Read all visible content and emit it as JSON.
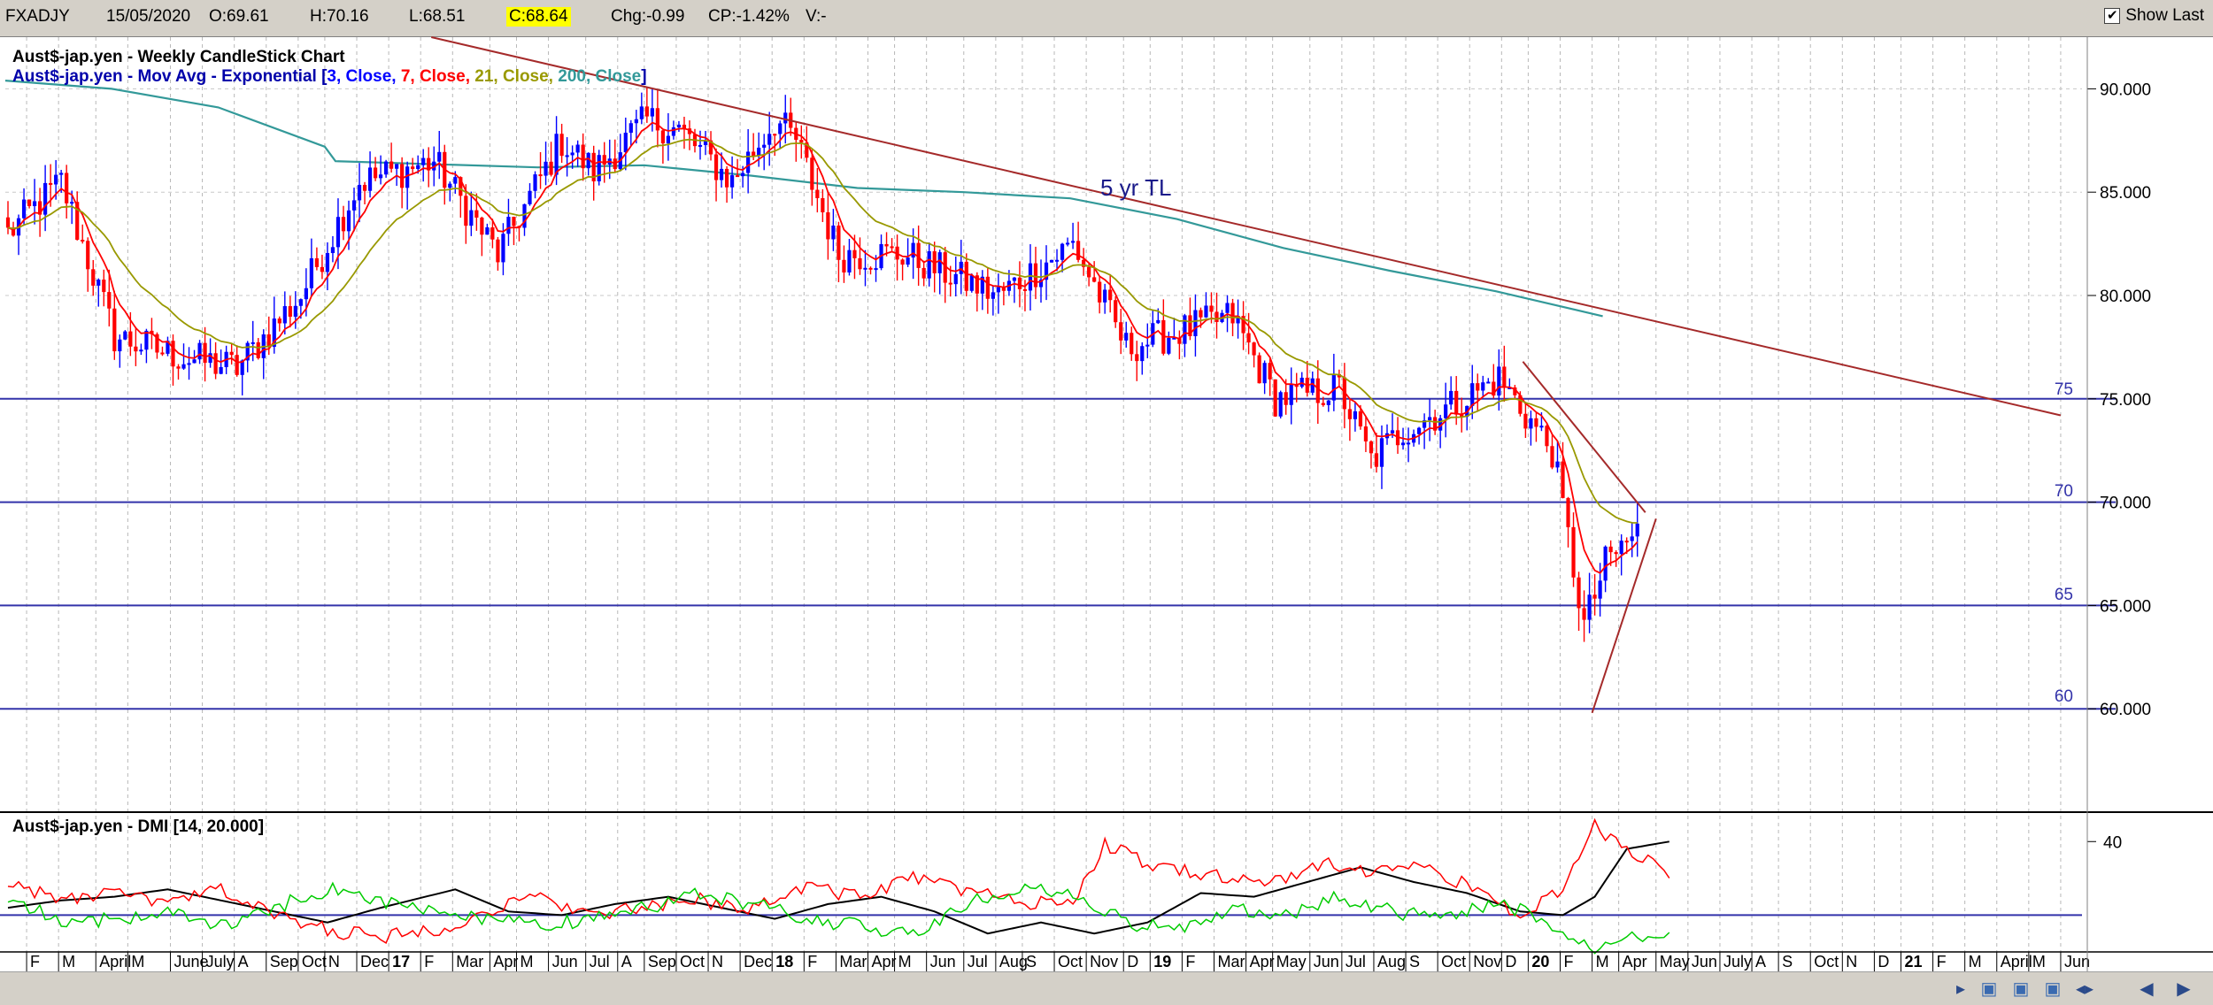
{
  "header": {
    "symbol": "FXADJY",
    "date": "15/05/2020",
    "open": "O:69.61",
    "high": "H:70.16",
    "low": "L:68.51",
    "close": "C:68.64",
    "change": "Chg:-0.99",
    "change_pct": "CP:-1.42%",
    "volume": "V:-",
    "show_last_label": "Show Last",
    "show_last_checked": "✔"
  },
  "price_panel": {
    "title": "Aust$-jap.yen - Weekly CandleStick Chart",
    "ma_prefix": "Aust$-jap.yen - Mov Avg - Exponential [",
    "ma_parts": [
      {
        "text": "3, Close, ",
        "color": "#0000ff"
      },
      {
        "text": "7, Close, ",
        "color": "#ff0000"
      },
      {
        "text": "21, Close, ",
        "color": "#999900"
      },
      {
        "text": "200, Close",
        "color": "#339999"
      }
    ],
    "ma_suffix": "]",
    "annotation": "5 yr TL",
    "level_labels": [
      "75",
      "70",
      "65",
      "60"
    ]
  },
  "dmi_panel": {
    "title": "Aust$-jap.yen - DMI [14, 20.000]"
  },
  "chart_data": [
    {
      "type": "candlestick",
      "title": "Aust$-jap.yen - Weekly CandleStick Chart",
      "ylim": [
        55,
        92.5
      ],
      "yticks": [
        "90.000",
        "85.000",
        "80.000",
        "75.000",
        "70.000",
        "65.000",
        "60.000"
      ],
      "ytick_values": [
        90,
        85,
        80,
        75,
        70,
        65,
        60
      ],
      "grid": true,
      "x_tick_labels": [
        "F",
        "M",
        "April",
        "M",
        "June",
        "July",
        "A",
        "Sep",
        "Oct",
        "N",
        "Dec",
        "17",
        "F",
        "Mar",
        "Apr",
        "M",
        "Jun",
        "Jul",
        "A",
        "Sep",
        "Oct",
        "N",
        "Dec",
        "18",
        "F",
        "Mar",
        "Apr",
        "M",
        "Jun",
        "Jul",
        "Aug",
        "S",
        "Oct",
        "Nov",
        "D",
        "19",
        "F",
        "Mar",
        "Apr",
        "May",
        "Jun",
        "Jul",
        "Aug",
        "S",
        "Oct",
        "Nov",
        "D",
        "20",
        "F",
        "M",
        "Apr",
        "May",
        "Jun",
        "July",
        "A",
        "S",
        "Oct",
        "N",
        "D",
        "21",
        "F",
        "M",
        "April",
        "M",
        "Jun"
      ],
      "x_tick_idx": [
        4,
        10,
        17,
        23,
        31,
        37,
        43,
        49,
        55,
        60,
        66,
        72,
        78,
        84,
        91,
        96,
        102,
        109,
        115,
        120,
        126,
        132,
        138,
        144,
        150,
        156,
        162,
        167,
        173,
        180,
        186,
        191,
        197,
        203,
        210,
        215,
        221,
        227,
        233,
        238,
        245,
        251,
        257,
        263,
        269,
        275,
        281,
        286,
        292,
        298,
        303,
        310,
        316,
        322,
        328,
        333,
        339,
        345,
        351,
        356,
        362,
        368,
        374,
        380,
        386
      ],
      "weeks_total": 390,
      "moving_averages": [
        {
          "name": "3, Close",
          "color": "#0000ff"
        },
        {
          "name": "7, Close",
          "color": "#ff0000"
        },
        {
          "name": "21, Close",
          "color": "#999900"
        },
        {
          "name": "200, Close",
          "color": "#339999"
        }
      ],
      "ema200_points": [
        [
          0,
          90.4
        ],
        [
          20,
          90.0
        ],
        [
          40,
          89.1
        ],
        [
          60,
          87.2
        ],
        [
          62,
          86.5
        ],
        [
          100,
          86.2
        ],
        [
          120,
          86.3
        ],
        [
          140,
          85.8
        ],
        [
          160,
          85.2
        ],
        [
          180,
          85.0
        ],
        [
          200,
          84.7
        ],
        [
          220,
          83.7
        ],
        [
          240,
          82.3
        ],
        [
          260,
          81.2
        ],
        [
          280,
          80.2
        ],
        [
          300,
          79.0
        ]
      ],
      "key_points": [
        [
          0,
          83
        ],
        [
          10,
          85.5
        ],
        [
          20,
          78
        ],
        [
          33,
          77
        ],
        [
          43,
          76.5
        ],
        [
          55,
          80
        ],
        [
          66,
          85.5
        ],
        [
          80,
          86.5
        ],
        [
          92,
          82
        ],
        [
          104,
          87.5
        ],
        [
          110,
          86
        ],
        [
          120,
          88.5
        ],
        [
          126,
          88
        ],
        [
          136,
          85.5
        ],
        [
          144,
          88.5
        ],
        [
          148,
          87.5
        ],
        [
          156,
          82
        ],
        [
          168,
          82
        ],
        [
          186,
          80
        ],
        [
          200,
          82.5
        ],
        [
          210,
          77.5
        ],
        [
          230,
          79
        ],
        [
          238,
          75
        ],
        [
          250,
          75.5
        ],
        [
          256,
          72
        ],
        [
          262,
          73.5
        ],
        [
          270,
          74.5
        ],
        [
          280,
          76
        ],
        [
          290,
          72.5
        ],
        [
          296,
          64
        ],
        [
          300,
          67
        ],
        [
          306,
          68.6
        ]
      ],
      "horizontal_levels": [
        75,
        70,
        65,
        60
      ],
      "trendlines": [
        {
          "from": [
            80,
            92.5
          ],
          "to": [
            386,
            74.2
          ],
          "color": "#a52a2a",
          "label": "5 yr TL"
        },
        {
          "from": [
            285,
            76.8
          ],
          "to": [
            308,
            69.5
          ],
          "color": "#a52a2a"
        },
        {
          "from": [
            298,
            59.8
          ],
          "to": [
            310,
            69.2
          ],
          "color": "#a52a2a"
        }
      ],
      "colors": {
        "up": "#0000ff",
        "down": "#ff0000",
        "level": "#3333aa",
        "trend": "#a52a2a"
      }
    },
    {
      "type": "line",
      "title": "Aust$-jap.yen - DMI [14, 20.000]",
      "ylim": [
        10,
        48
      ],
      "yticks": [
        "40"
      ],
      "ytick_values": [
        40
      ],
      "threshold": 20,
      "series": [
        {
          "color": "#000000",
          "points": [
            [
              0,
              22
            ],
            [
              10,
              24
            ],
            [
              20,
              25
            ],
            [
              30,
              27
            ],
            [
              40,
              24
            ],
            [
              50,
              21
            ],
            [
              60,
              18
            ],
            [
              70,
              22
            ],
            [
              84,
              27
            ],
            [
              94,
              21
            ],
            [
              104,
              20
            ],
            [
              114,
              23
            ],
            [
              124,
              25
            ],
            [
              134,
              22
            ],
            [
              144,
              19
            ],
            [
              154,
              23
            ],
            [
              164,
              25
            ],
            [
              174,
              21
            ],
            [
              184,
              15
            ],
            [
              194,
              18
            ],
            [
              204,
              15
            ],
            [
              214,
              18
            ],
            [
              224,
              26
            ],
            [
              234,
              25
            ],
            [
              244,
              29
            ],
            [
              254,
              33
            ],
            [
              264,
              29
            ],
            [
              274,
              26
            ],
            [
              284,
              21
            ],
            [
              292,
              20
            ],
            [
              298,
              25
            ],
            [
              304,
              38
            ],
            [
              312,
              40
            ]
          ]
        },
        {
          "color": "#ff0000",
          "points": [
            [
              0,
              29
            ],
            [
              10,
              24
            ],
            [
              20,
              26
            ],
            [
              30,
              23
            ],
            [
              40,
              27
            ],
            [
              50,
              20
            ],
            [
              60,
              16
            ],
            [
              70,
              14
            ],
            [
              80,
              16
            ],
            [
              90,
              21
            ],
            [
              100,
              25
            ],
            [
              110,
              20
            ],
            [
              120,
              22
            ],
            [
              130,
              24
            ],
            [
              140,
              22
            ],
            [
              150,
              28
            ],
            [
              160,
              25
            ],
            [
              170,
              30
            ],
            [
              180,
              27
            ],
            [
              190,
              23
            ],
            [
              200,
              24
            ],
            [
              206,
              39
            ],
            [
              216,
              33
            ],
            [
              226,
              31
            ],
            [
              236,
              28
            ],
            [
              246,
              34
            ],
            [
              256,
              32
            ],
            [
              264,
              34
            ],
            [
              274,
              28
            ],
            [
              284,
              20
            ],
            [
              292,
              27
            ],
            [
              298,
              44
            ],
            [
              304,
              38
            ],
            [
              312,
              31
            ]
          ]
        },
        {
          "color": "#00cc00",
          "points": [
            [
              0,
              25
            ],
            [
              10,
              18
            ],
            [
              20,
              19
            ],
            [
              30,
              21
            ],
            [
              40,
              17
            ],
            [
              50,
              22
            ],
            [
              60,
              27
            ],
            [
              70,
              24
            ],
            [
              80,
              21
            ],
            [
              90,
              19
            ],
            [
              100,
              17
            ],
            [
              110,
              19
            ],
            [
              120,
              22
            ],
            [
              130,
              26
            ],
            [
              140,
              23
            ],
            [
              150,
              19
            ],
            [
              160,
              17
            ],
            [
              170,
              15
            ],
            [
              180,
              23
            ],
            [
              190,
              27
            ],
            [
              200,
              26
            ],
            [
              210,
              18
            ],
            [
              220,
              16
            ],
            [
              230,
              22
            ],
            [
              240,
              20
            ],
            [
              250,
              25
            ],
            [
              260,
              21
            ],
            [
              270,
              19
            ],
            [
              280,
              24
            ],
            [
              290,
              17
            ],
            [
              298,
              11
            ],
            [
              304,
              14
            ],
            [
              312,
              16
            ]
          ]
        }
      ],
      "colors": {
        "threshold": "#3333aa"
      }
    }
  ]
}
